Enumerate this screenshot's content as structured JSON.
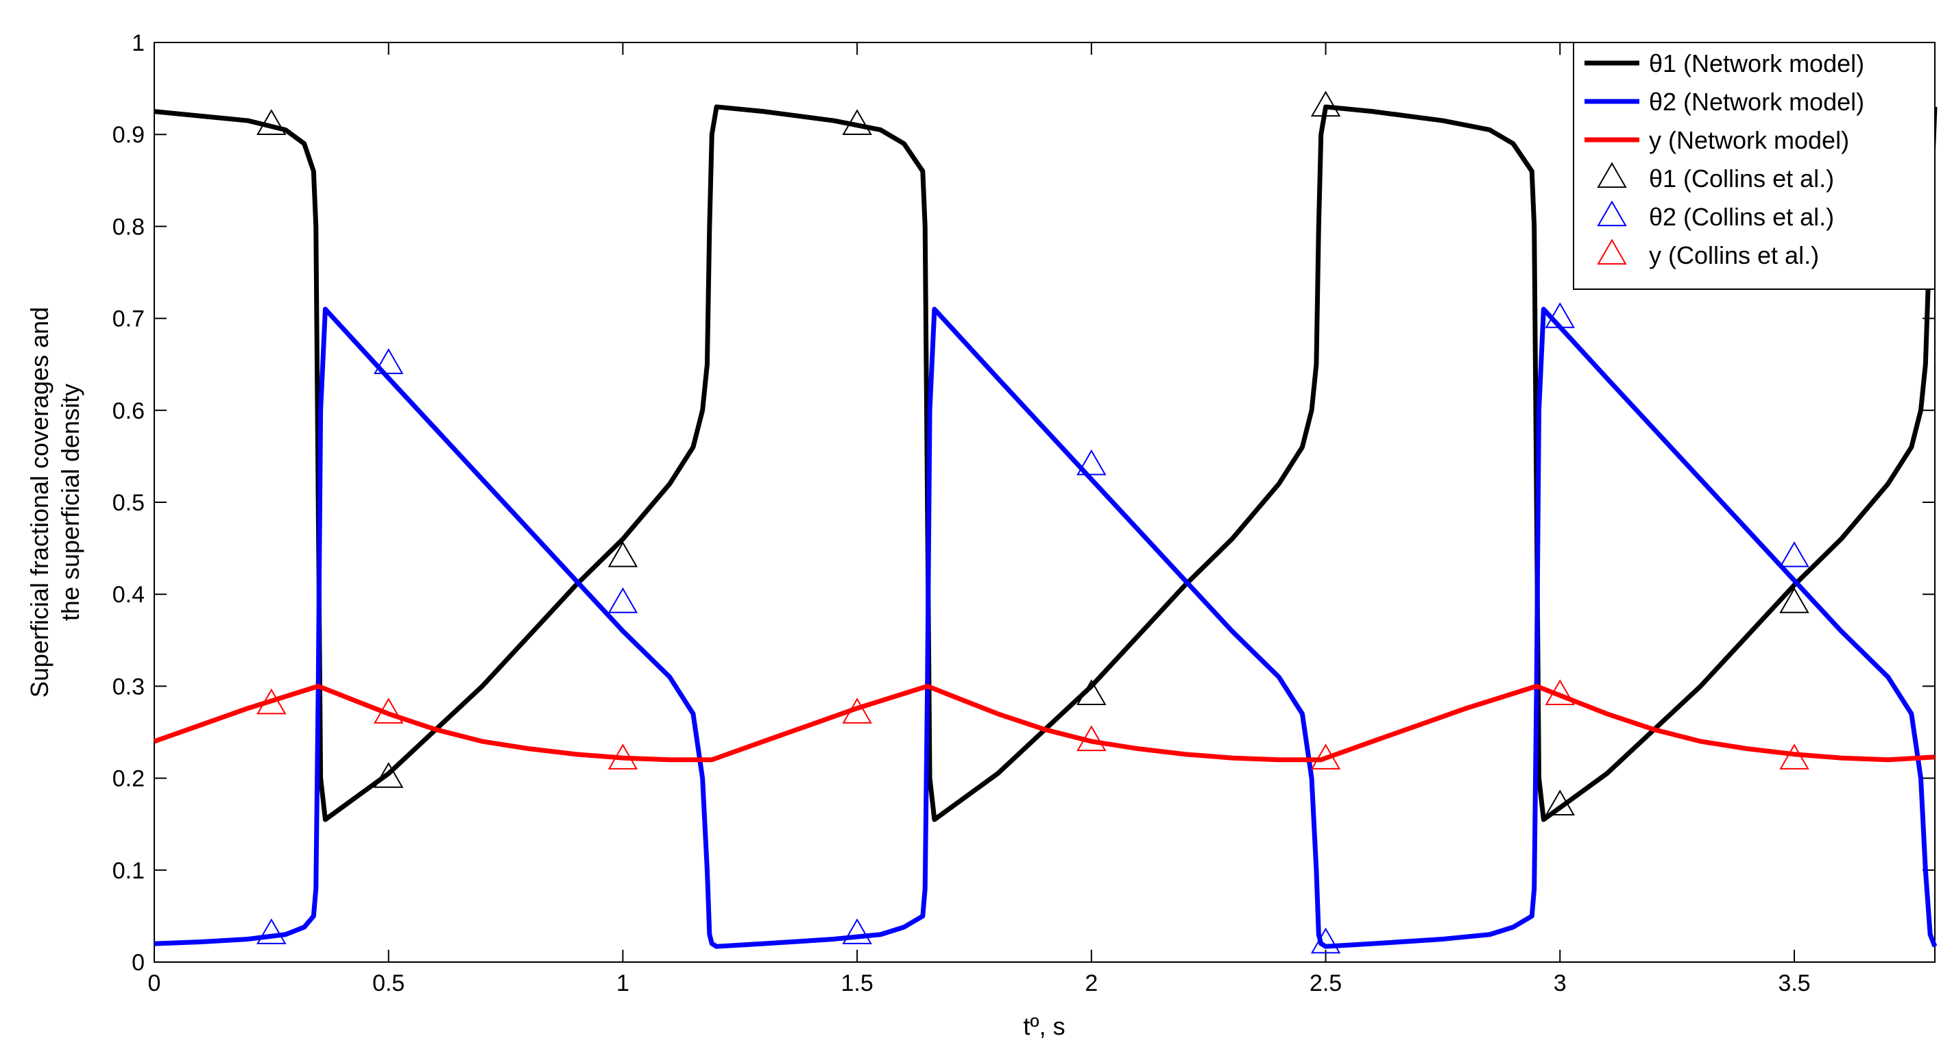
{
  "chart_data": {
    "type": "line",
    "xlabel": "tº, s",
    "ylabel_line1": "Superficial fractional coverages and",
    "ylabel_line2": "the superficial density",
    "xlim": [
      0,
      3.8
    ],
    "ylim": [
      0,
      1
    ],
    "x_ticks": [
      "0",
      "0.5",
      "1",
      "1.5",
      "2",
      "2.5",
      "3",
      "3.5"
    ],
    "y_ticks": [
      "0",
      "0.1",
      "0.2",
      "0.3",
      "0.4",
      "0.5",
      "0.6",
      "0.7",
      "0.8",
      "0.9",
      "1"
    ],
    "grid": false,
    "legend_position": "top-right",
    "series": [
      {
        "name": "θ1 (Network model)",
        "style": "line",
        "color": "#000000",
        "x": [
          0,
          0.1,
          0.2,
          0.28,
          0.32,
          0.34,
          0.345,
          0.35,
          0.355,
          0.365,
          0.5,
          0.7,
          0.9,
          1.0,
          1.1,
          1.15,
          1.17,
          1.18,
          1.185,
          1.19,
          1.2,
          1.3,
          1.45,
          1.55,
          1.6,
          1.64,
          1.645,
          1.65,
          1.655,
          1.665,
          1.8,
          2.0,
          2.2,
          2.3,
          2.4,
          2.45,
          2.47,
          2.48,
          2.485,
          2.49,
          2.5,
          2.6,
          2.75,
          2.85,
          2.9,
          2.94,
          2.945,
          2.95,
          2.955,
          2.965,
          3.1,
          3.3,
          3.5,
          3.6,
          3.7,
          3.75,
          3.77,
          3.78,
          3.79,
          3.8
        ],
        "y": [
          0.925,
          0.92,
          0.915,
          0.905,
          0.89,
          0.86,
          0.8,
          0.5,
          0.2,
          0.155,
          0.205,
          0.3,
          0.41,
          0.46,
          0.52,
          0.56,
          0.6,
          0.65,
          0.8,
          0.9,
          0.93,
          0.925,
          0.915,
          0.905,
          0.89,
          0.86,
          0.8,
          0.5,
          0.2,
          0.155,
          0.205,
          0.3,
          0.41,
          0.46,
          0.52,
          0.56,
          0.6,
          0.65,
          0.8,
          0.9,
          0.93,
          0.925,
          0.915,
          0.905,
          0.89,
          0.86,
          0.8,
          0.5,
          0.2,
          0.155,
          0.205,
          0.3,
          0.41,
          0.46,
          0.52,
          0.56,
          0.6,
          0.65,
          0.8,
          0.93
        ]
      },
      {
        "name": "θ2 (Network model)",
        "style": "line",
        "color": "#0000ff",
        "x": [
          0,
          0.1,
          0.2,
          0.28,
          0.32,
          0.34,
          0.345,
          0.35,
          0.355,
          0.365,
          0.5,
          0.7,
          0.9,
          1.0,
          1.1,
          1.15,
          1.17,
          1.18,
          1.185,
          1.19,
          1.2,
          1.3,
          1.45,
          1.55,
          1.6,
          1.64,
          1.645,
          1.65,
          1.655,
          1.665,
          1.8,
          2.0,
          2.2,
          2.3,
          2.4,
          2.45,
          2.47,
          2.48,
          2.485,
          2.49,
          2.5,
          2.6,
          2.75,
          2.85,
          2.9,
          2.94,
          2.945,
          2.95,
          2.955,
          2.965,
          3.1,
          3.3,
          3.5,
          3.6,
          3.7,
          3.75,
          3.77,
          3.78,
          3.79,
          3.8
        ],
        "y": [
          0.02,
          0.022,
          0.025,
          0.03,
          0.038,
          0.05,
          0.08,
          0.3,
          0.6,
          0.71,
          0.635,
          0.525,
          0.415,
          0.36,
          0.31,
          0.27,
          0.2,
          0.1,
          0.03,
          0.02,
          0.017,
          0.02,
          0.025,
          0.03,
          0.038,
          0.05,
          0.08,
          0.3,
          0.6,
          0.71,
          0.635,
          0.525,
          0.415,
          0.36,
          0.31,
          0.27,
          0.2,
          0.1,
          0.03,
          0.02,
          0.017,
          0.02,
          0.025,
          0.03,
          0.038,
          0.05,
          0.08,
          0.3,
          0.6,
          0.71,
          0.635,
          0.525,
          0.415,
          0.36,
          0.31,
          0.27,
          0.2,
          0.1,
          0.03,
          0.017
        ]
      },
      {
        "name": "y (Network model)",
        "style": "line",
        "color": "#ff0000",
        "x": [
          0,
          0.1,
          0.2,
          0.3,
          0.35,
          0.4,
          0.5,
          0.6,
          0.7,
          0.8,
          0.9,
          1.0,
          1.1,
          1.19,
          1.3,
          1.4,
          1.5,
          1.6,
          1.65,
          1.7,
          1.8,
          1.9,
          2.0,
          2.1,
          2.2,
          2.3,
          2.4,
          2.49,
          2.6,
          2.7,
          2.8,
          2.9,
          2.95,
          3.0,
          3.1,
          3.2,
          3.3,
          3.4,
          3.5,
          3.6,
          3.7,
          3.8
        ],
        "y": [
          0.24,
          0.258,
          0.276,
          0.292,
          0.3,
          0.29,
          0.27,
          0.253,
          0.24,
          0.232,
          0.226,
          0.222,
          0.22,
          0.22,
          0.24,
          0.258,
          0.276,
          0.292,
          0.3,
          0.29,
          0.27,
          0.253,
          0.24,
          0.232,
          0.226,
          0.222,
          0.22,
          0.22,
          0.24,
          0.258,
          0.276,
          0.292,
          0.3,
          0.29,
          0.27,
          0.253,
          0.24,
          0.232,
          0.226,
          0.222,
          0.22,
          0.223
        ]
      },
      {
        "name": "θ1 (Collins et al.)",
        "style": "markers",
        "color": "#000000",
        "x": [
          0.25,
          0.5,
          1.0,
          1.5,
          2.0,
          2.5,
          3.0,
          3.5
        ],
        "y": [
          0.91,
          0.2,
          0.44,
          0.91,
          0.29,
          0.93,
          0.17,
          0.39
        ]
      },
      {
        "name": "θ2 (Collins et al.)",
        "style": "markers",
        "color": "#0000ff",
        "x": [
          0.25,
          0.5,
          1.0,
          1.5,
          2.0,
          2.5,
          3.0,
          3.5
        ],
        "y": [
          0.03,
          0.65,
          0.39,
          0.03,
          0.54,
          0.02,
          0.7,
          0.44
        ]
      },
      {
        "name": "y (Collins et al.)",
        "style": "markers",
        "color": "#ff0000",
        "x": [
          0.25,
          0.5,
          1.0,
          1.5,
          2.0,
          2.5,
          3.0,
          3.5
        ],
        "y": [
          0.28,
          0.27,
          0.22,
          0.27,
          0.24,
          0.22,
          0.29,
          0.22
        ]
      }
    ]
  }
}
